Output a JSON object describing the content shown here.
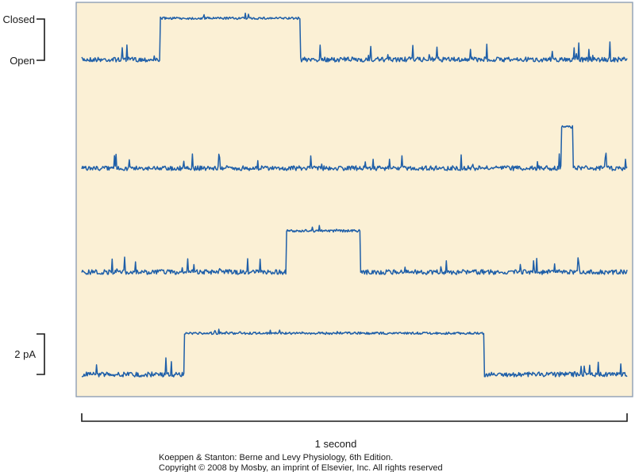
{
  "chart_data": {
    "type": "line",
    "title": "",
    "xlabel": "",
    "ylabel": "",
    "state_labels": {
      "closed": "Closed",
      "open": "Open"
    },
    "current_scale": {
      "label": "2 pA",
      "value": 2,
      "unit": "pA"
    },
    "time_scale": {
      "label": "1 second",
      "value": 1,
      "unit": "s"
    },
    "x_range": [
      0,
      1.0
    ],
    "colors": {
      "panel_background": "#fbf0d5",
      "panel_border": "#8f9fb5",
      "trace": "#1f5fa8"
    },
    "series": [
      {
        "name": "",
        "closed_intervals": [
          [
            0.143,
            0.4
          ]
        ]
      },
      {
        "name": "",
        "closed_intervals": [
          [
            0.88,
            0.9
          ]
        ]
      },
      {
        "name": "",
        "closed_intervals": [
          [
            0.375,
            0.51
          ]
        ]
      },
      {
        "name": "",
        "closed_intervals": [
          [
            0.188,
            0.738
          ]
        ]
      }
    ]
  },
  "credit": {
    "line1": "Koeppen & Stanton: Berne and Levy Physiology, 6th Edition.",
    "line2": "Copyright © 2008 by Mosby, an imprint of Elsevier, Inc. All rights reserved"
  }
}
